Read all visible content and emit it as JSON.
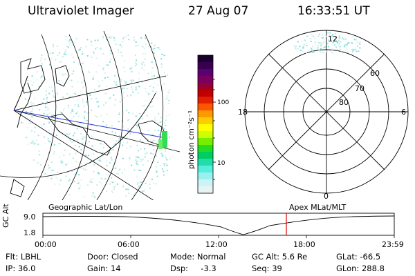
{
  "header": {
    "instrument": "Ultraviolet Imager",
    "date": "27 Aug 07",
    "time": "16:33:51 UT"
  },
  "colorbar": {
    "unit_label": "photon cm⁻²s⁻¹",
    "ticks": [
      "100",
      "10"
    ],
    "colors": [
      "#1a0030",
      "#3a0050",
      "#5a0070",
      "#7a0060",
      "#990030",
      "#c00000",
      "#e02000",
      "#ff5500",
      "#ff9900",
      "#ffcc00",
      "#ffff00",
      "#ccff00",
      "#77ee00",
      "#22dd22",
      "#00cc66",
      "#22ddaa",
      "#55eedd",
      "#99f0ee",
      "#ccf4f4",
      "#e8f4f4"
    ]
  },
  "polar": {
    "mlt_labels": {
      "top": "12",
      "left": "18",
      "right": "6",
      "bottom": "0"
    },
    "lat_labels": [
      "60",
      "70",
      "80"
    ]
  },
  "timeline": {
    "axis_label": "GC Alt",
    "y_labels": [
      "9.0",
      "1.8"
    ],
    "left_caption": "Geographic Lat/Lon",
    "right_caption": "Apex MLat/MLT",
    "x_ticks": [
      "00:00",
      "06:00",
      "12:00",
      "18:00",
      "23:59"
    ],
    "marker_color": "#dd0000"
  },
  "info_rows": [
    [
      "Flt: LBHL",
      "Door: Closed",
      "Mode: Normal",
      "GC Alt: 5.6 Re",
      "GLat: -66.5"
    ],
    [
      "IP: 36.0",
      "Gain: 14",
      "Dsp:     -3.3",
      "Seq: 39",
      "GLon: 288.8"
    ]
  ]
}
